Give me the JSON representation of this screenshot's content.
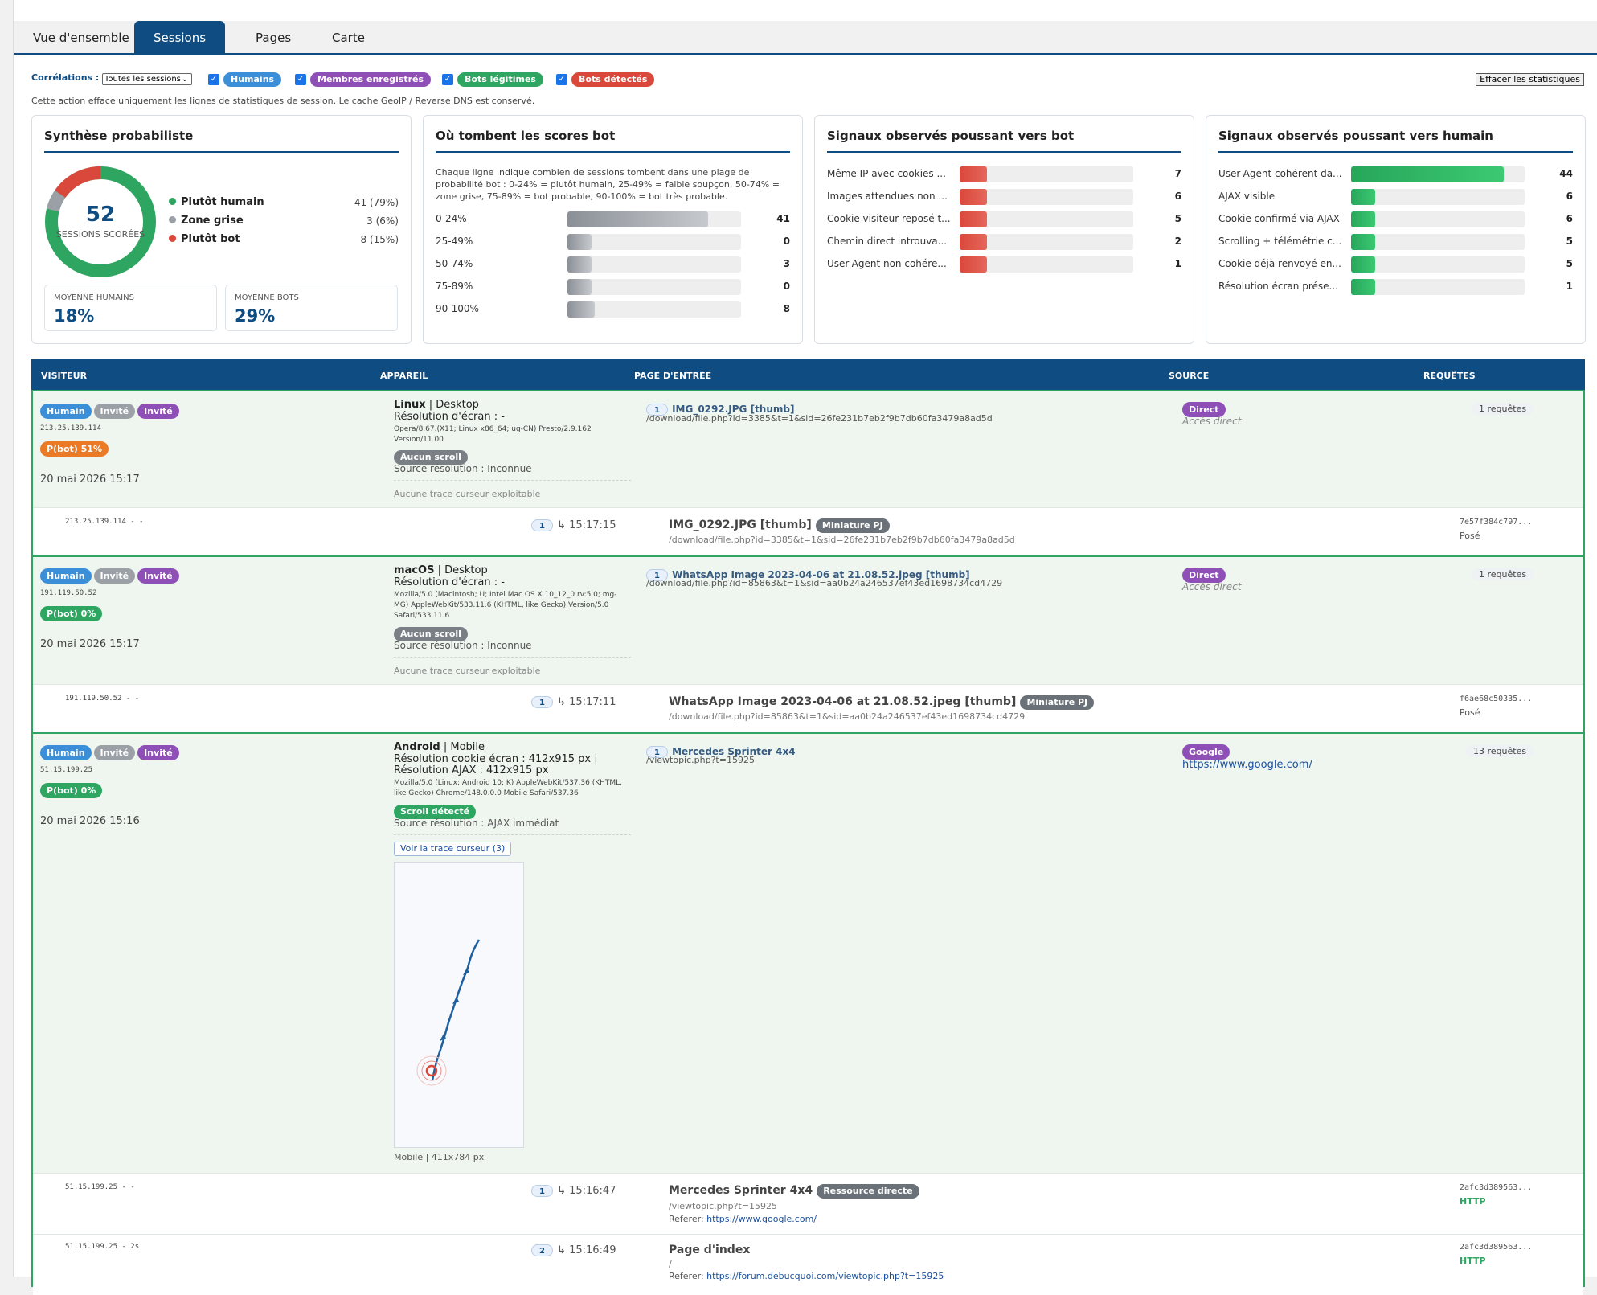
{
  "colors": {
    "primary": "#0f4c81",
    "human": "#3b8fd9",
    "guest": "#9aa0a6",
    "member": "#8e4fb6",
    "legit_bot": "#2fa562",
    "bot": "#d9483b",
    "orange": "#ea7a26",
    "topbars": [
      "#3ccf8e",
      "#25b6e6",
      "#f28b36",
      "#e65aa8",
      "#d63f3f",
      "#8e52c8"
    ]
  },
  "tabs": [
    {
      "label": "Vue d'ensemble"
    },
    {
      "label": "Sessions"
    },
    {
      "label": "Pages"
    },
    {
      "label": "Carte"
    }
  ],
  "filters": {
    "label": "Corrélations :",
    "select_value": "Toutes les sessions",
    "chips": [
      "Humains",
      "Membres enregistrés",
      "Bots légitimes",
      "Bots détectés"
    ],
    "clear_button": "Effacer les statistiques",
    "note": "Cette action efface uniquement les lignes de statistiques de session. Le cache GeoIP / Reverse DNS est conservé."
  },
  "synth": {
    "title": "Synthèse probabiliste",
    "total": "52",
    "total_label": "SESSIONS SCORÉES",
    "legend": [
      {
        "label": "Plutôt humain",
        "value": "41 (79%)",
        "count": 41
      },
      {
        "label": "Zone grise",
        "value": "3 (6%)",
        "count": 3
      },
      {
        "label": "Plutôt bot",
        "value": "8 (15%)",
        "count": 8
      }
    ],
    "avg_h_label": "MOYENNE HUMAINS",
    "avg_h": "18%",
    "avg_b_label": "MOYENNE BOTS",
    "avg_b": "29%"
  },
  "scores": {
    "title": "Où tombent les scores bot",
    "desc": "Chaque ligne indique combien de sessions tombent dans une plage de probabilité bot : 0-24% = plutôt humain, 25-49% = faible soupçon, 50-74% = zone grise, 75-89% = bot probable, 90-100% = bot très probable.",
    "rows": [
      {
        "label": "0-24%",
        "count": "41"
      },
      {
        "label": "25-49%",
        "count": "0"
      },
      {
        "label": "50-74%",
        "count": "3"
      },
      {
        "label": "75-89%",
        "count": "0"
      },
      {
        "label": "90-100%",
        "count": "8"
      }
    ]
  },
  "botsig": {
    "title": "Signaux observés poussant vers bot",
    "rows": [
      {
        "label": "Même IP avec cookies ...",
        "count": "7"
      },
      {
        "label": "Images attendues non ...",
        "count": "6"
      },
      {
        "label": "Cookie visiteur reposé t...",
        "count": "5"
      },
      {
        "label": "Chemin direct introuva...",
        "count": "2"
      },
      {
        "label": "User-Agent non cohére...",
        "count": "1"
      }
    ]
  },
  "humsig": {
    "title": "Signaux observés poussant vers humain",
    "rows": [
      {
        "label": "User-Agent cohérent da...",
        "count": "44"
      },
      {
        "label": "AJAX visible",
        "count": "6"
      },
      {
        "label": "Cookie confirmé via AJAX",
        "count": "6"
      },
      {
        "label": "Scrolling + télémétrie c...",
        "count": "5"
      },
      {
        "label": "Cookie déjà renvoyé en...",
        "count": "5"
      },
      {
        "label": "Résolution écran prése...",
        "count": "1"
      }
    ]
  },
  "table_head": [
    "VISITEUR",
    "APPAREIL",
    "PAGE D'ENTRÉE",
    "SOURCE",
    "REQUÊTES"
  ],
  "badges": {
    "human": "Humain",
    "guest": "Invité",
    "member": "Invité"
  },
  "sessions": [
    {
      "ip": "213.25.139.114",
      "pbot": "P(bot) 51%",
      "date": "20 mai 2026 15:17",
      "os": "Linux",
      "dev": " | Desktop",
      "res": "Résolution d'écran : -",
      "ua": "Opera/8.67.(X11; Linux x86_64; ug-CN) Presto/2.9.162 Version/11.00",
      "scroll": "Aucun scroll",
      "ressrc": "Source résolution : Inconnue",
      "trace": "Aucune trace curseur exploitable",
      "pnum": "1",
      "ptitle": "IMG_0292.JPG [thumb]",
      "purl": "/download/file.php?id=3385&t=1&sid=26fe231b7eb2f9b7db60fa3479a8ad5d",
      "src": "Direct",
      "srcsub": "Accès direct",
      "req": "1 requêtes",
      "sub": [
        {
          "ip": "213.25.139.114 - -",
          "n": "1",
          "time": "↳ 15:17:15",
          "title": "IMG_0292.JPG [thumb]",
          "tag": "Miniature PJ",
          "url": "/download/file.php?id=3385&t=1&sid=26fe231b7eb2f9b7db60fa3479a8ad5d",
          "hash": "7e57f384c797...",
          "st": "Posé"
        }
      ]
    },
    {
      "ip": "191.119.50.52",
      "pbot": "P(bot) 0%",
      "date": "20 mai 2026 15:17",
      "os": "macOS",
      "dev": " | Desktop",
      "res": "Résolution d'écran : -",
      "ua": "Mozilla/5.0 (Macintosh; U; Intel Mac OS X 10_12_0 rv:5.0; mg-MG) AppleWebKit/533.11.6 (KHTML, like Gecko) Version/5.0 Safari/533.11.6",
      "scroll": "Aucun scroll",
      "ressrc": "Source résolution : Inconnue",
      "trace": "Aucune trace curseur exploitable",
      "pnum": "1",
      "ptitle": "WhatsApp Image 2023-04-06 at 21.08.52.jpeg [thumb]",
      "purl": "/download/file.php?id=85863&t=1&sid=aa0b24a246537ef43ed1698734cd4729",
      "src": "Direct",
      "srcsub": "Accès direct",
      "req": "1 requêtes",
      "sub": [
        {
          "ip": "191.119.50.52 - -",
          "n": "1",
          "time": "↳ 15:17:11",
          "title": "WhatsApp Image 2023-04-06 at 21.08.52.jpeg [thumb]",
          "tag": "Miniature PJ",
          "url": "/download/file.php?id=85863&t=1&sid=aa0b24a246537ef43ed1698734cd4729",
          "hash": "f6ae68c50335...",
          "st": "Posé"
        }
      ]
    },
    {
      "ip": "51.15.199.25",
      "pbot": "P(bot) 0%",
      "date": "20 mai 2026 15:16",
      "os": "Android",
      "dev": " | Mobile",
      "res": "Résolution cookie écran : 412x915 px |",
      "res2": "Résolution AJAX : 412x915 px",
      "ua": "Mozilla/5.0 (Linux; Android 10; K) AppleWebKit/537.36 (KHTML, like Gecko) Chrome/148.0.0.0 Mobile Safari/537.36",
      "scroll": "Scroll détecté",
      "ressrc": "Source résolution : AJAX immédiat",
      "tracebtn": "Voir la trace curseur (3)",
      "tracecap": "Mobile | 411x784 px",
      "pnum": "1",
      "ptitle": "Mercedes Sprinter 4x4",
      "purl": "/viewtopic.php?t=15925",
      "src": "Google",
      "srcsub": "https://www.google.com/",
      "req": "13 requêtes",
      "sub": [
        {
          "ip": "51.15.199.25 - -",
          "n": "1",
          "time": "↳ 15:16:47",
          "title": "Mercedes Sprinter 4x4",
          "tag": "Ressource directe",
          "url": "/viewtopic.php?t=15925",
          "ref_label": "Referer:",
          "ref": "https://www.google.com/",
          "hash": "2afc3d389563...",
          "st": "HTTP"
        },
        {
          "ip": "51.15.199.25 - 2s",
          "n": "2",
          "time": "↳ 15:16:49",
          "title": "Page d'index",
          "url": "/",
          "ref_label": "Referer:",
          "ref": "https://forum.debucquoi.com/viewtopic.php?t=15925",
          "hash": "2afc3d389563...",
          "st": "HTTP"
        }
      ]
    }
  ]
}
